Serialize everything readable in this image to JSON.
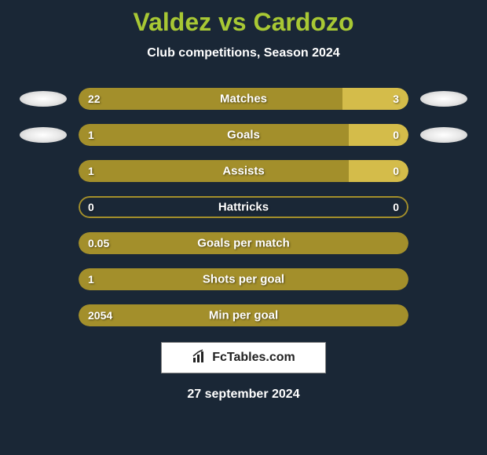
{
  "title": "Valdez vs Cardozo",
  "subtitle": "Club competitions, Season 2024",
  "colors": {
    "background": "#1a2736",
    "title": "#a8c834",
    "text": "#ffffff",
    "bar_left": "#a38f2b",
    "bar_right": "#d4bc4a",
    "footer_bg": "#ffffff"
  },
  "rows": [
    {
      "label": "Matches",
      "left_val": "22",
      "right_val": "3",
      "left_pct": 80,
      "right_pct": 20,
      "show_badges": true
    },
    {
      "label": "Goals",
      "left_val": "1",
      "right_val": "0",
      "left_pct": 82,
      "right_pct": 18,
      "show_badges": true
    },
    {
      "label": "Assists",
      "left_val": "1",
      "right_val": "0",
      "left_pct": 82,
      "right_pct": 18,
      "show_badges": false
    },
    {
      "label": "Hattricks",
      "left_val": "0",
      "right_val": "0",
      "left_pct": 0,
      "right_pct": 0,
      "show_badges": false,
      "empty": true
    },
    {
      "label": "Goals per match",
      "left_val": "0.05",
      "right_val": "",
      "left_pct": 100,
      "right_pct": 0,
      "show_badges": false,
      "full_left": true
    },
    {
      "label": "Shots per goal",
      "left_val": "1",
      "right_val": "",
      "left_pct": 100,
      "right_pct": 0,
      "show_badges": false,
      "full_left": true
    },
    {
      "label": "Min per goal",
      "left_val": "2054",
      "right_val": "",
      "left_pct": 100,
      "right_pct": 0,
      "show_badges": false,
      "full_left": true
    }
  ],
  "footer": {
    "site": "FcTables.com",
    "date": "27 september 2024"
  }
}
